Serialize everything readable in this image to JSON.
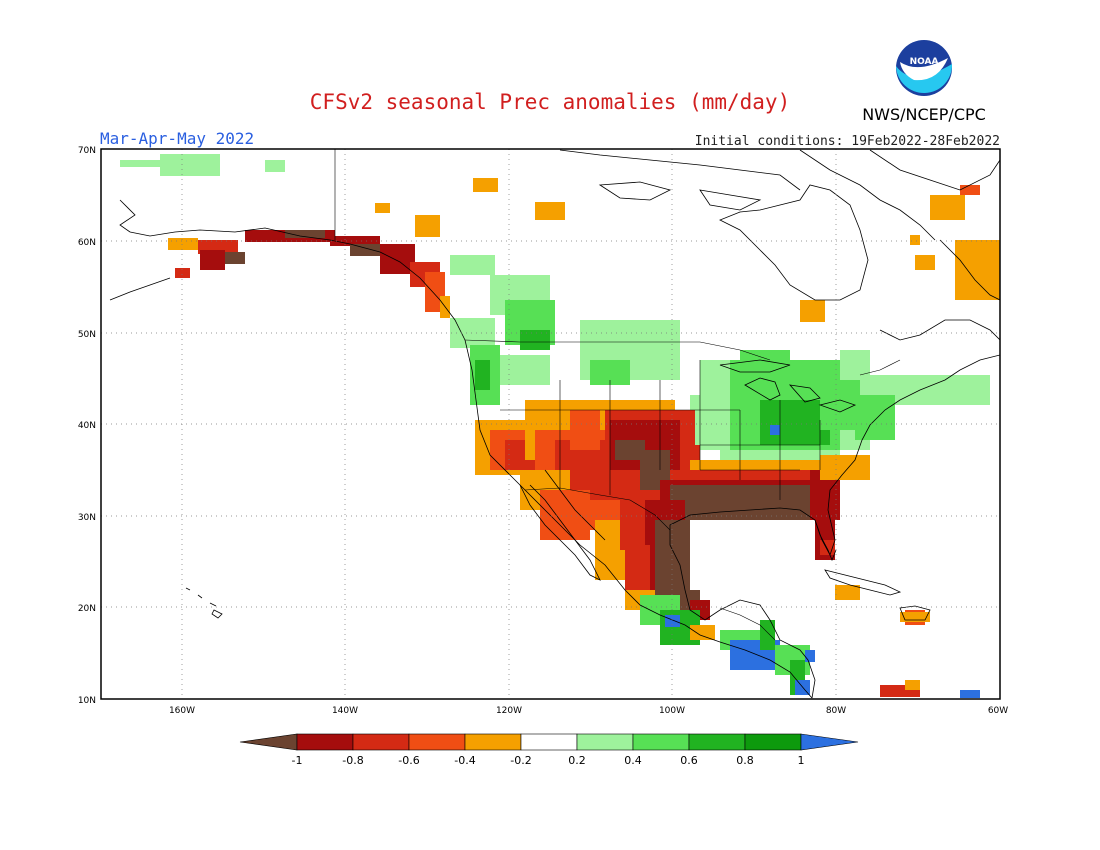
{
  "header": {
    "title": "CFSv2 seasonal Prec anomalies (mm/day)",
    "season": "Mar-Apr-May 2022",
    "initial_conditions": "Initial conditions: 19Feb2022-28Feb2022",
    "agency": "NWS/NCEP/CPC",
    "logo_text": "NOAA"
  },
  "map": {
    "lon_ticks": [
      "160W",
      "140W",
      "120W",
      "100W",
      "80W",
      "60W"
    ],
    "lat_ticks": [
      "70N",
      "60N",
      "50N",
      "40N",
      "30N",
      "20N",
      "10N"
    ]
  },
  "colorbar": {
    "labels": [
      "-1",
      "-0.8",
      "-0.6",
      "-0.4",
      "-0.2",
      "0.2",
      "0.4",
      "0.6",
      "0.8",
      "1"
    ],
    "colors": {
      "lt_minus1": "#6b4330",
      "m1_m08": "#a50d0d",
      "m08_m06": "#d42a14",
      "m06_m04": "#f04e14",
      "m04_m02": "#f5a000",
      "m02_02": "#ffffff",
      "p02_04": "#9ef29c",
      "p04_06": "#57e055",
      "p06_08": "#21b321",
      "p08_1": "#0d9a0d",
      "gt_1": "#2c70e0"
    }
  }
}
